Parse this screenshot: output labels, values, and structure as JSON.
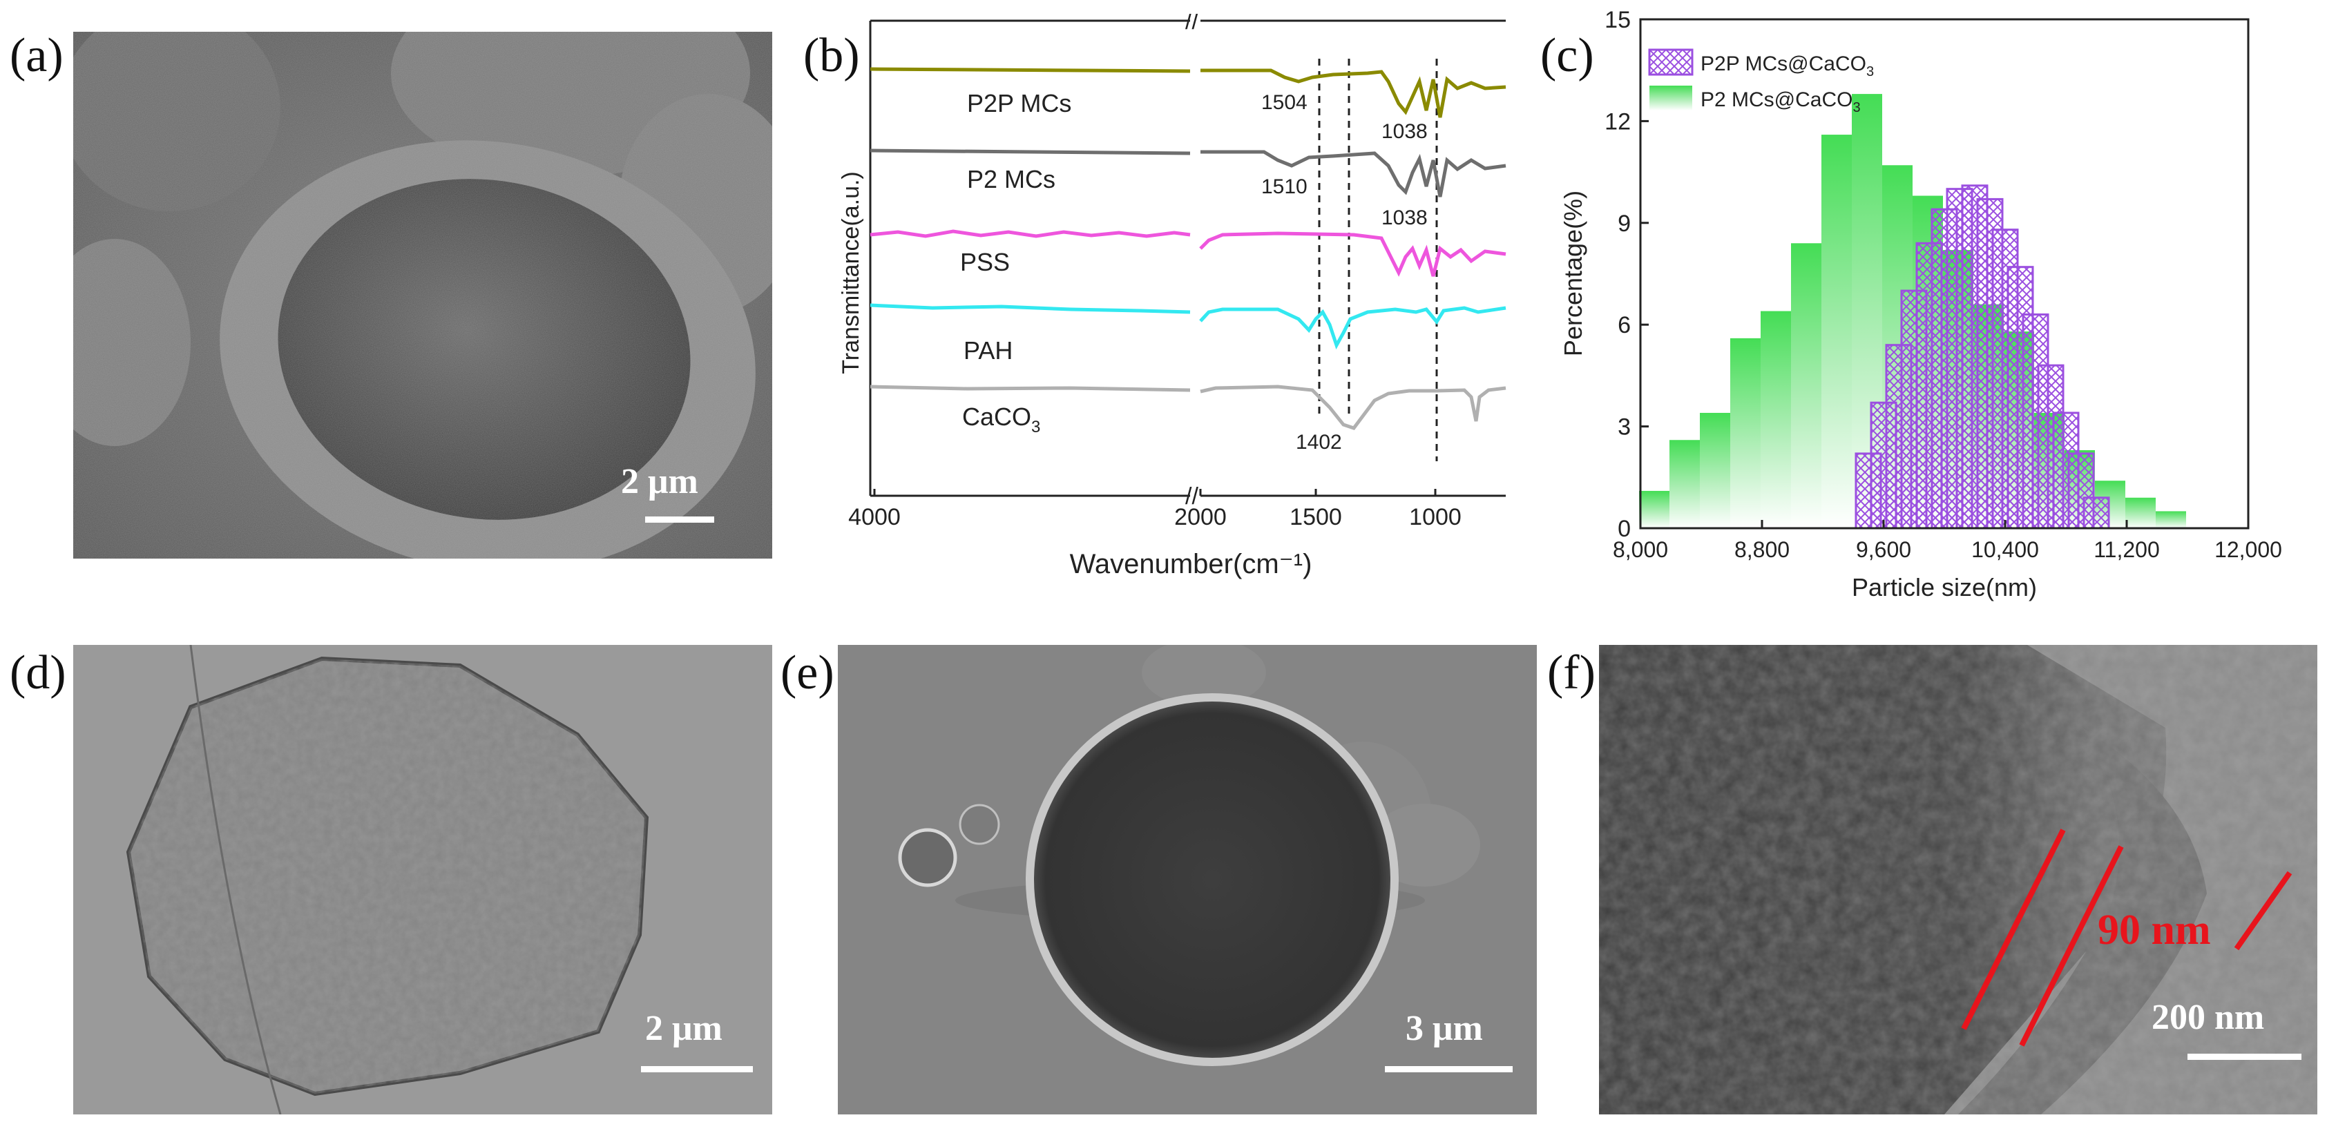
{
  "panels": {
    "a": {
      "letter": "(a)",
      "scale": "2 μm"
    },
    "b": {
      "letter": "(b)"
    },
    "c": {
      "letter": "(c)"
    },
    "d": {
      "letter": "(d)",
      "scale": "2 μm"
    },
    "e": {
      "letter": "(e)",
      "scale": "3 μm"
    },
    "f": {
      "letter": "(f)",
      "scale": "200 nm",
      "annotation": "90 nm"
    }
  },
  "colors": {
    "p2p": "#8a8a00",
    "p2": "#6e6e6e",
    "pss": "#ee55dd",
    "pah": "#33e8f0",
    "caco3": "#b0b0b0",
    "hist_purple": "#9b4fe0",
    "hist_green": "#55dd66",
    "annotation_red": "#e8141c"
  },
  "chart_data": [
    {
      "type": "line",
      "panel": "b",
      "xlabel": "Wavenumber(cm⁻¹)",
      "ylabel": "Transmittance(a.u.)",
      "x_ticks": [
        "4000",
        "2000",
        "1500",
        "1000"
      ],
      "x_axis_break": "//",
      "series": [
        {
          "name": "P2P MCs",
          "color": "#8a8a00",
          "marks": [
            "1504",
            "1038"
          ]
        },
        {
          "name": "P2 MCs",
          "color": "#6e6e6e",
          "marks": [
            "1510",
            "1038"
          ]
        },
        {
          "name": "PSS",
          "color": "#ee55dd",
          "marks": []
        },
        {
          "name": "PAH",
          "color": "#33e8f0",
          "marks": []
        },
        {
          "name": "CaCO",
          "name_sub": "3",
          "color": "#b0b0b0",
          "marks": [
            "1402"
          ]
        }
      ],
      "vlines": [
        1504,
        1402,
        1038
      ]
    },
    {
      "type": "bar",
      "panel": "c",
      "xlabel": "Particle size(nm)",
      "ylabel": "Percentage(%)",
      "x_ticks": [
        "8,000",
        "8,800",
        "9,600",
        "10,400",
        "11,200",
        "12,000"
      ],
      "y_ticks": [
        "0",
        "3",
        "6",
        "9",
        "12",
        "15"
      ],
      "xlim": [
        8000,
        12000
      ],
      "ylim": [
        0,
        15
      ],
      "series": [
        {
          "legend_main": "P2 MCs@CaCO",
          "legend_sub": "3",
          "style": "gradient-green",
          "x": [
            8000,
            8200,
            8400,
            8600,
            8800,
            9000,
            9200,
            9400,
            9600,
            9800,
            10000,
            10200,
            10400,
            10600,
            10800,
            11000,
            11200,
            11400
          ],
          "values": [
            1.1,
            2.6,
            3.4,
            5.6,
            6.4,
            8.4,
            11.6,
            12.8,
            10.7,
            9.8,
            8.2,
            6.6,
            5.8,
            3.4,
            2.3,
            1.4,
            0.9,
            0.5
          ]
        },
        {
          "legend_main": "P2P MCs@CaCO",
          "legend_sub": "3",
          "style": "hatched-purple",
          "x": [
            9500,
            9600,
            9700,
            9800,
            9900,
            10000,
            10100,
            10200,
            10300,
            10400,
            10500,
            10600,
            10700,
            10800,
            10900,
            11000,
            11100,
            11200,
            11300,
            11400,
            11500,
            11600,
            11700,
            11800
          ],
          "values": [
            2.2,
            3.7,
            5.4,
            7.0,
            8.4,
            9.4,
            10.0,
            10.1,
            9.7,
            8.8,
            7.7,
            6.3,
            4.8,
            3.4,
            2.2,
            0.9,
            0,
            0,
            0,
            0,
            0,
            0,
            0,
            0
          ]
        }
      ]
    }
  ]
}
